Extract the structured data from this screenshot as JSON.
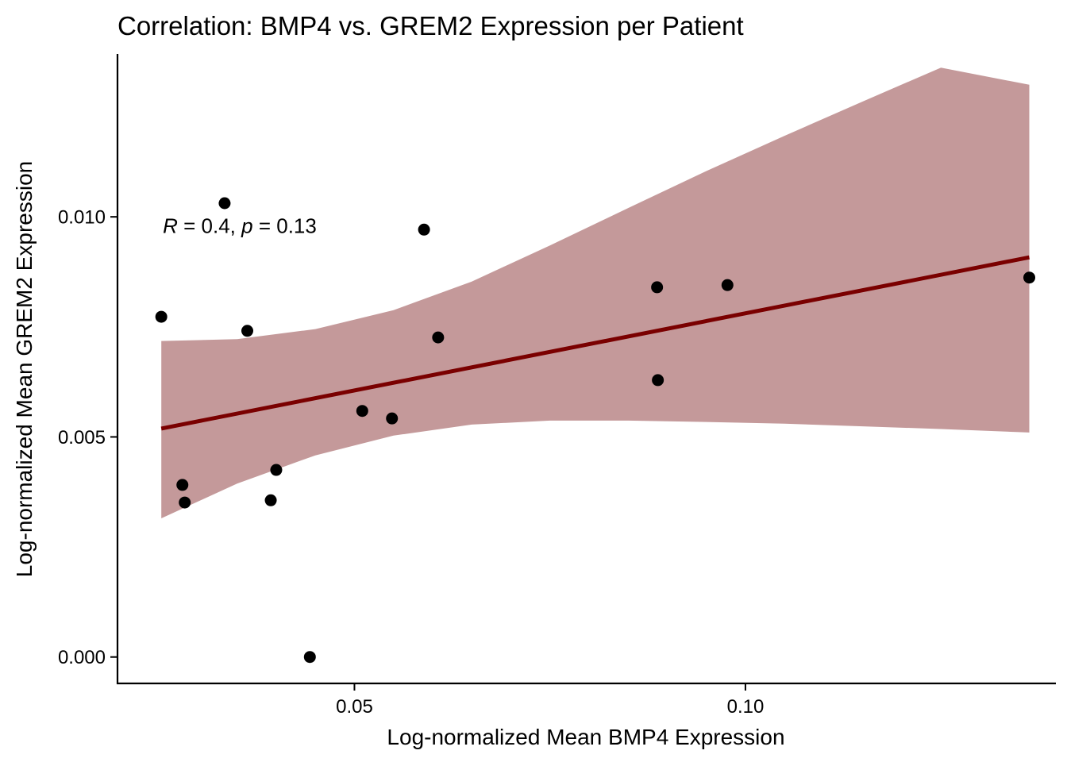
{
  "chart_data": {
    "type": "scatter",
    "title": "Correlation: BMP4 vs. GREM2 Expression per Patient",
    "xlabel": "Log-normalized Mean BMP4 Expression",
    "ylabel": "Log-normalized Mean GREM2 Expression",
    "xlim": [
      0.0197,
      0.1397
    ],
    "ylim": [
      -0.0006,
      0.0137
    ],
    "x_ticks": [
      0.05,
      0.1
    ],
    "x_tick_labels": [
      "0.05",
      "0.10"
    ],
    "y_ticks": [
      0.0,
      0.005,
      0.01
    ],
    "y_tick_labels": [
      "0.000",
      "0.005",
      "0.010"
    ],
    "grid": false,
    "legend": "none",
    "annotation": {
      "r_symbol": "R",
      "r_text": " = 0.4, ",
      "p_symbol": "p",
      "p_text": " = 0.13",
      "x": 0.0255,
      "y": 0.0098
    },
    "points": {
      "color": "#000000",
      "x": [
        0.0253,
        0.028,
        0.0283,
        0.0334,
        0.0363,
        0.0393,
        0.04,
        0.0443,
        0.051,
        0.0548,
        0.0589,
        0.0607,
        0.0887,
        0.0888,
        0.0977,
        0.1363
      ],
      "y": [
        0.00773,
        0.00391,
        0.00351,
        0.01031,
        0.00741,
        0.00356,
        0.00425,
        0.0,
        0.00559,
        0.00542,
        0.00971,
        0.00726,
        0.0084,
        0.00629,
        0.00845,
        0.00862
      ]
    },
    "fit": {
      "color": "#7a0000",
      "x": [
        0.0253,
        0.1363
      ],
      "y": [
        0.00519,
        0.00908
      ]
    },
    "confidence_band": {
      "color": "#c4999a",
      "x": [
        0.0253,
        0.035,
        0.045,
        0.055,
        0.065,
        0.075,
        0.085,
        0.095,
        0.105,
        0.115,
        0.125,
        0.1363
      ],
      "upper": [
        0.00718,
        0.00722,
        0.00745,
        0.00788,
        0.00853,
        0.00935,
        0.0102,
        0.01104,
        0.01184,
        0.01262,
        0.01339,
        0.013
      ],
      "lower": [
        0.00315,
        0.00394,
        0.00458,
        0.00503,
        0.00528,
        0.00537,
        0.00537,
        0.00534,
        0.0053,
        0.00524,
        0.00518,
        0.0051
      ]
    }
  }
}
